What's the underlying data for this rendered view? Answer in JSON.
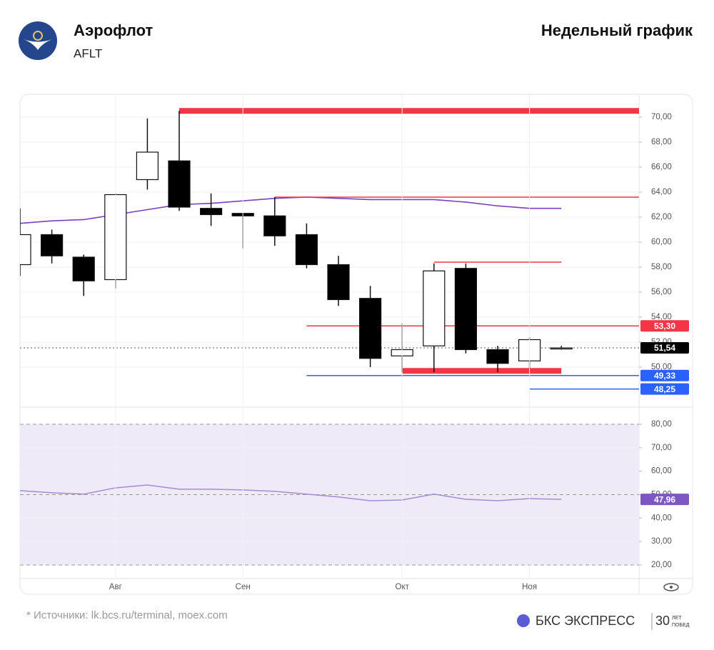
{
  "header": {
    "title": "Аэрофлот",
    "ticker": "AFLT",
    "period": "Недельный график"
  },
  "chart_data": [
    {
      "type": "candlestick",
      "categories": [
        null,
        null,
        null,
        "Авг",
        null,
        null,
        null,
        "Сен",
        null,
        null,
        null,
        null,
        "Окт",
        null,
        null,
        null,
        "Ноя",
        null
      ],
      "open": [
        58.2,
        60.6,
        58.8,
        57.0,
        65.0,
        66.5,
        62.7,
        62.3,
        62.1,
        60.6,
        58.2,
        55.5,
        50.9,
        51.7,
        57.9,
        51.4,
        50.5,
        51.5
      ],
      "high": [
        62.7,
        61.0,
        59.0,
        63.9,
        69.9,
        70.5,
        63.9,
        62.3,
        63.6,
        61.5,
        58.9,
        56.5,
        53.5,
        58.3,
        58.3,
        51.7,
        52.4,
        51.7
      ],
      "low": [
        57.3,
        58.3,
        55.7,
        56.3,
        64.2,
        62.5,
        61.3,
        59.5,
        59.7,
        57.9,
        54.9,
        50.0,
        49.6,
        49.6,
        51.1,
        49.6,
        49.9,
        51.4
      ],
      "close": [
        60.6,
        58.9,
        56.9,
        63.8,
        67.2,
        62.8,
        62.2,
        62.1,
        60.5,
        58.2,
        55.4,
        50.7,
        51.4,
        57.7,
        51.4,
        50.3,
        52.2,
        51.54
      ],
      "close_label": "51,54",
      "lines": [
        {
          "color": "#7b3fc0",
          "values": [
            61.5,
            61.7,
            61.8,
            62.2,
            62.6,
            63.0,
            63.1,
            63.3,
            63.5,
            63.6,
            63.5,
            63.4,
            63.4,
            63.4,
            63.2,
            62.9,
            62.7,
            62.7
          ]
        }
      ],
      "levels": [
        {
          "value": 70.5,
          "color": "#f23645",
          "style": "thick",
          "start": 5
        },
        {
          "value": 63.6,
          "color": "#f23645",
          "style": "thin",
          "start": 8
        },
        {
          "value": 58.4,
          "color": "#f23645",
          "style": "thin",
          "start": 13,
          "end": 17
        },
        {
          "value": 53.3,
          "label": "53,30",
          "color": "#f23645",
          "style": "thin",
          "start": 9
        },
        {
          "value": 49.7,
          "color": "#f23645",
          "style": "thick",
          "start": 12,
          "end": 17
        },
        {
          "value": 49.33,
          "label": "49,33",
          "color": "#2962ff",
          "style": "thin",
          "start": 9
        },
        {
          "value": 48.25,
          "label": "48,25",
          "color": "#2962ff",
          "style": "thin",
          "start": 16
        }
      ],
      "ylim": [
        46.8,
        71.37
      ],
      "yticks": [
        {
          "value": 50,
          "label": "50,00"
        },
        {
          "value": 52,
          "label": "52,00"
        },
        {
          "value": 54,
          "label": "54,00"
        },
        {
          "value": 56,
          "label": "56,00"
        },
        {
          "value": 58,
          "label": "58,00"
        },
        {
          "value": 60,
          "label": "60,00"
        },
        {
          "value": 62,
          "label": "62,00"
        },
        {
          "value": 64,
          "label": "64,00"
        },
        {
          "value": 66,
          "label": "66,00"
        },
        {
          "value": 68,
          "label": "68,00"
        },
        {
          "value": 70,
          "label": "70,00"
        }
      ]
    },
    {
      "type": "line",
      "color": "#a58bd3",
      "values": [
        51.7,
        50.8,
        50.2,
        52.9,
        54.1,
        52.3,
        52.3,
        52.0,
        51.4,
        50.2,
        49.0,
        47.4,
        47.7,
        50.2,
        48.0,
        47.4,
        48.3,
        47.96
      ],
      "last_label": "47,96",
      "band": [
        20,
        80
      ],
      "ref_lines": [
        20,
        50,
        80
      ],
      "ylim": [
        14.2,
        87.3
      ],
      "yticks": [
        {
          "value": 20,
          "label": "20,00"
        },
        {
          "value": 30,
          "label": "30,00"
        },
        {
          "value": 40,
          "label": "40,00"
        },
        {
          "value": 50,
          "label": "50,00"
        },
        {
          "value": 60,
          "label": "60,00"
        },
        {
          "value": 70,
          "label": "70,00"
        },
        {
          "value": 80,
          "label": "80,00"
        }
      ]
    }
  ],
  "footer": {
    "source": "* Источники: lk.bcs.ru/terminal, moex.com",
    "brand": "БКС ЭКСПРЕСС",
    "badge_num": "30",
    "badge_top": "ЛЕТ",
    "badge_bottom": "ПОБЕД"
  }
}
